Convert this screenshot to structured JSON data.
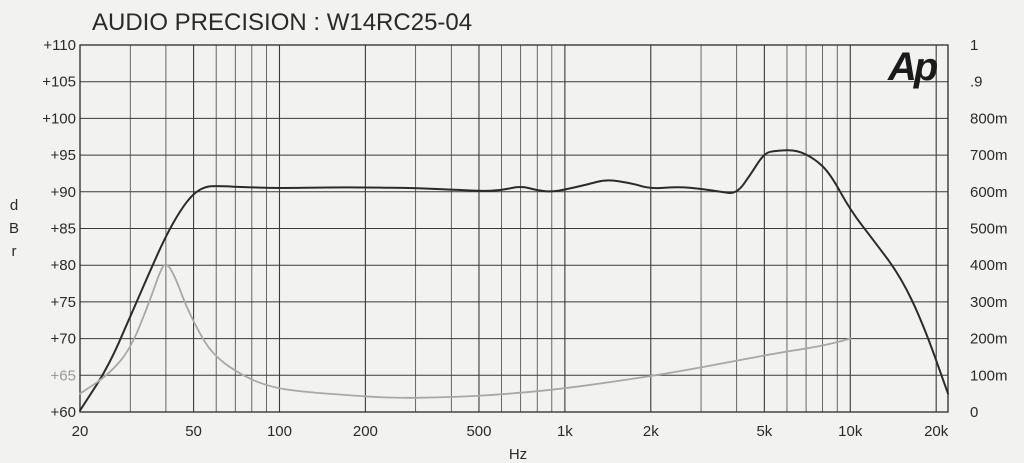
{
  "chart_data": {
    "type": "line",
    "title": "AUDIO PRECISION  : W14RC25-04",
    "xlabel": "Hz",
    "ylabel": "dBr",
    "ylabel_right": "",
    "x_scale": "log",
    "xlim": [
      20,
      22000
    ],
    "ylim": [
      60,
      110
    ],
    "ylim_right": [
      0,
      1
    ],
    "grid": true,
    "legend": "none",
    "logo_text": "Ap",
    "x_ticks": [
      {
        "value": 20,
        "label": "20"
      },
      {
        "value": 50,
        "label": "50"
      },
      {
        "value": 100,
        "label": "100"
      },
      {
        "value": 200,
        "label": "200"
      },
      {
        "value": 500,
        "label": "500"
      },
      {
        "value": 1000,
        "label": "1k"
      },
      {
        "value": 2000,
        "label": "2k"
      },
      {
        "value": 5000,
        "label": "5k"
      },
      {
        "value": 10000,
        "label": "10k"
      },
      {
        "value": 20000,
        "label": "20k"
      }
    ],
    "y_ticks": [
      {
        "value": 110,
        "label": "+110"
      },
      {
        "value": 105,
        "label": "+105"
      },
      {
        "value": 100,
        "label": "+100"
      },
      {
        "value": 95,
        "label": "+95"
      },
      {
        "value": 90,
        "label": "+90"
      },
      {
        "value": 85,
        "label": "+85"
      },
      {
        "value": 80,
        "label": "+80"
      },
      {
        "value": 75,
        "label": "+75"
      },
      {
        "value": 70,
        "label": "+70"
      },
      {
        "value": 65,
        "label": "+65"
      },
      {
        "value": 60,
        "label": "+60"
      }
    ],
    "y_ticks_right": [
      {
        "value": 1.0,
        "label": "1"
      },
      {
        "value": 0.9,
        "label": ".9"
      },
      {
        "value": 0.8,
        "label": "800m"
      },
      {
        "value": 0.7,
        "label": "700m"
      },
      {
        "value": 0.6,
        "label": "600m"
      },
      {
        "value": 0.5,
        "label": "500m"
      },
      {
        "value": 0.4,
        "label": "400m"
      },
      {
        "value": 0.3,
        "label": "300m"
      },
      {
        "value": 0.2,
        "label": "200m"
      },
      {
        "value": 0.1,
        "label": "100m"
      },
      {
        "value": 0.0,
        "label": "0"
      }
    ],
    "series": [
      {
        "axis": "left",
        "color": "#2b2b2b",
        "points": [
          [
            20,
            60.2
          ],
          [
            25,
            66
          ],
          [
            30,
            73
          ],
          [
            35,
            79
          ],
          [
            40,
            84
          ],
          [
            45,
            87.5
          ],
          [
            50,
            89.8
          ],
          [
            55,
            90.7
          ],
          [
            60,
            90.8
          ],
          [
            80,
            90.6
          ],
          [
            100,
            90.5
          ],
          [
            150,
            90.6
          ],
          [
            200,
            90.6
          ],
          [
            300,
            90.5
          ],
          [
            400,
            90.3
          ],
          [
            500,
            90.1
          ],
          [
            600,
            90.2
          ],
          [
            700,
            90.8
          ],
          [
            800,
            90.2
          ],
          [
            900,
            90.0
          ],
          [
            1000,
            90.3
          ],
          [
            1200,
            91.0
          ],
          [
            1400,
            91.7
          ],
          [
            1700,
            91.2
          ],
          [
            2000,
            90.4
          ],
          [
            2500,
            90.7
          ],
          [
            3000,
            90.4
          ],
          [
            3500,
            90.0
          ],
          [
            4000,
            89.7
          ],
          [
            4500,
            92.5
          ],
          [
            5000,
            95.3
          ],
          [
            5500,
            95.6
          ],
          [
            6500,
            95.7
          ],
          [
            7500,
            94.5
          ],
          [
            8500,
            92.5
          ],
          [
            10000,
            87.5
          ],
          [
            12000,
            83.5
          ],
          [
            15000,
            78.5
          ],
          [
            18000,
            72
          ],
          [
            22000,
            62.5
          ]
        ]
      },
      {
        "axis": "right",
        "color": "#a8a8a8",
        "points": [
          [
            20,
            0.05
          ],
          [
            25,
            0.1
          ],
          [
            30,
            0.17
          ],
          [
            35,
            0.3
          ],
          [
            38,
            0.38
          ],
          [
            40,
            0.41
          ],
          [
            43,
            0.37
          ],
          [
            47,
            0.29
          ],
          [
            52,
            0.22
          ],
          [
            58,
            0.16
          ],
          [
            70,
            0.11
          ],
          [
            90,
            0.07
          ],
          [
            120,
            0.055
          ],
          [
            180,
            0.045
          ],
          [
            250,
            0.038
          ],
          [
            400,
            0.04
          ],
          [
            600,
            0.048
          ],
          [
            900,
            0.06
          ],
          [
            1500,
            0.083
          ],
          [
            2500,
            0.11
          ],
          [
            4000,
            0.14
          ],
          [
            6000,
            0.165
          ],
          [
            8000,
            0.18
          ],
          [
            10000,
            0.2
          ]
        ]
      }
    ]
  }
}
